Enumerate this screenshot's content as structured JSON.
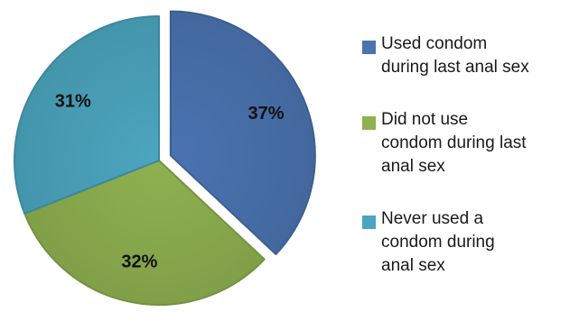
{
  "chart_data": {
    "type": "pie",
    "title": "",
    "exploded_slice": 0,
    "legend_placement": "right",
    "series": [
      {
        "values": [
          37,
          32,
          31
        ]
      }
    ],
    "categories": [
      "Used condom during last anal sex",
      "Did not use condom during last anal sex",
      "Never used a condom during anal sex"
    ],
    "slices": [
      {
        "label": "Used condom during last anal sex",
        "legend_lines": [
          "Used condom",
          "during last anal sex"
        ],
        "value": 37,
        "display": "37%",
        "color": "#4a73b0"
      },
      {
        "label": "Did not use condom during last anal sex",
        "legend_lines": [
          "Did not use",
          "condom during last",
          "anal sex"
        ],
        "value": 32,
        "display": "32%",
        "color": "#8fb150"
      },
      {
        "label": "Never used a condom during anal sex",
        "legend_lines": [
          "Never used a",
          "condom during",
          "anal sex"
        ],
        "value": 31,
        "display": "31%",
        "color": "#4ca5bf"
      }
    ]
  }
}
